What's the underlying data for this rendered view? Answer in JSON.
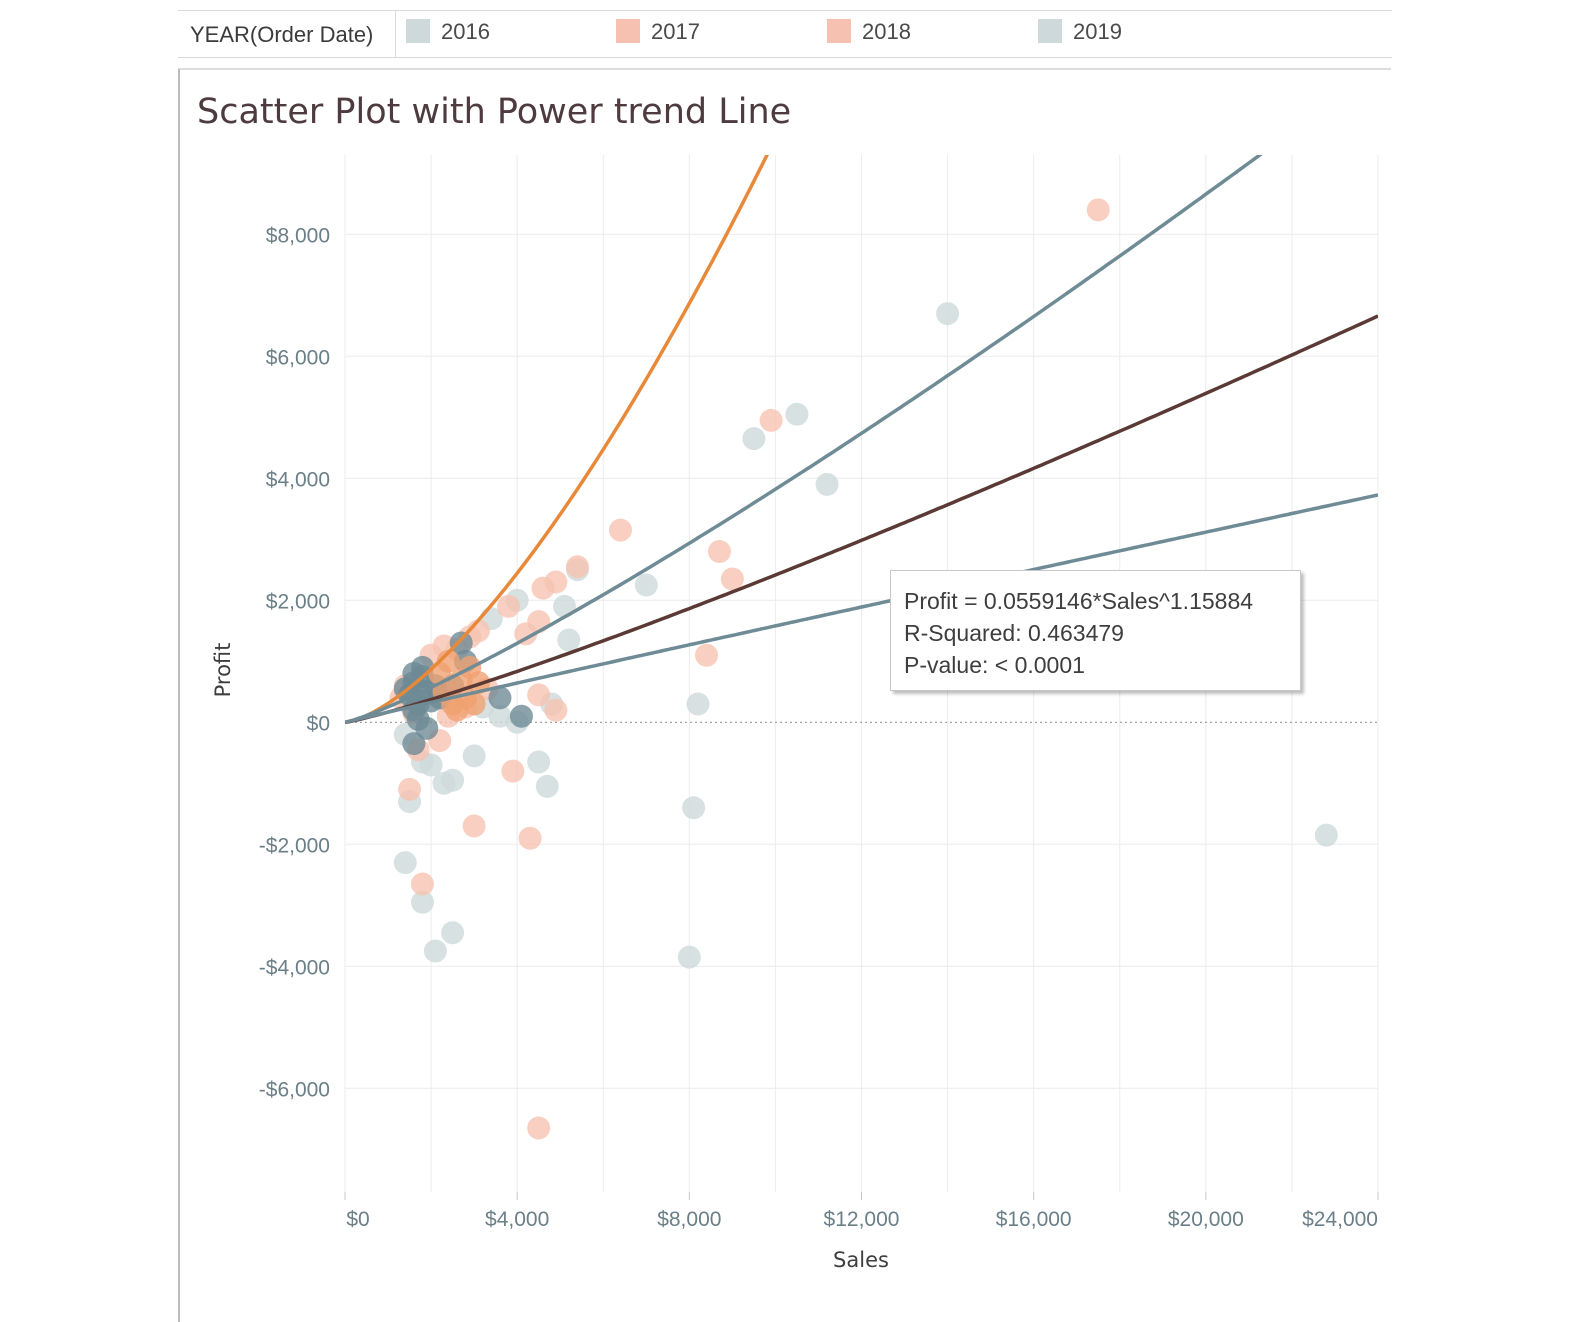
{
  "legend": {
    "title": "YEAR(Order Date)",
    "items": [
      {
        "label": "2016",
        "color": "#cdd9da"
      },
      {
        "label": "2017",
        "color": "#f6c1b0"
      },
      {
        "label": "2018",
        "color": "#f6c1b0"
      },
      {
        "label": "2019",
        "color": "#cdd9da"
      }
    ]
  },
  "tooltip": {
    "equation": "Profit = 0.0559146*Sales^1.15884",
    "r_squared": "R-Squared: 0.463479",
    "p_value": "P-value: < 0.0001"
  },
  "chart_data": {
    "type": "scatter",
    "title": "Scatter Plot with Power trend Line",
    "xlabel": "Sales",
    "ylabel": "Profit",
    "xlim": [
      0,
      24000
    ],
    "ylim": [
      -7700,
      9300
    ],
    "x_ticks": [
      0,
      4000,
      8000,
      12000,
      16000,
      20000,
      24000
    ],
    "x_tick_labels": [
      "$0",
      "$4,000",
      "$8,000",
      "$12,000",
      "$16,000",
      "$20,000",
      "$24,000"
    ],
    "y_ticks": [
      8000,
      6000,
      4000,
      2000,
      0,
      -2000,
      -4000,
      -6000
    ],
    "y_tick_labels": [
      "$8,000",
      "$6,000",
      "$4,000",
      "$2,000",
      "$0",
      "-$2,000",
      "-$4,000",
      "-$6,000"
    ],
    "grid": true,
    "zero_line": "dotted",
    "legend_position": "top",
    "series": [
      {
        "color": "#cdd9da",
        "points": [
          [
            14000,
            6700
          ],
          [
            10500,
            5050
          ],
          [
            9500,
            4650
          ],
          [
            11200,
            3900
          ],
          [
            7000,
            2250
          ],
          [
            5400,
            2500
          ],
          [
            4000,
            2000
          ],
          [
            5100,
            1900
          ],
          [
            3400,
            1700
          ],
          [
            5200,
            1350
          ],
          [
            8200,
            300
          ],
          [
            8100,
            -1400
          ],
          [
            8000,
            -3850
          ],
          [
            22800,
            -1850
          ],
          [
            4800,
            300
          ],
          [
            4500,
            -650
          ],
          [
            4700,
            -1050
          ],
          [
            3000,
            -550
          ],
          [
            2500,
            -950
          ],
          [
            2300,
            -1000
          ],
          [
            1500,
            -1300
          ],
          [
            1400,
            -2300
          ],
          [
            1800,
            -2950
          ],
          [
            2100,
            -3750
          ],
          [
            2500,
            -3450
          ],
          [
            4000,
            0
          ],
          [
            3600,
            100
          ],
          [
            3200,
            250
          ],
          [
            1500,
            300
          ],
          [
            1800,
            -650
          ],
          [
            2000,
            -700
          ],
          [
            1400,
            -200
          ]
        ]
      },
      {
        "color": "#f6c1b0",
        "points": [
          [
            17500,
            8400
          ],
          [
            9900,
            4950
          ],
          [
            6400,
            3150
          ],
          [
            8700,
            2800
          ],
          [
            9000,
            2350
          ],
          [
            5400,
            2550
          ],
          [
            4900,
            2300
          ],
          [
            4600,
            2200
          ],
          [
            3800,
            1900
          ],
          [
            4500,
            1650
          ],
          [
            4200,
            1450
          ],
          [
            8400,
            1100
          ],
          [
            4900,
            200
          ],
          [
            4500,
            450
          ],
          [
            3900,
            -800
          ],
          [
            3000,
            -1700
          ],
          [
            4300,
            -1900
          ],
          [
            1500,
            -1100
          ],
          [
            1800,
            -2650
          ],
          [
            4500,
            -6650
          ],
          [
            3100,
            1500
          ],
          [
            2900,
            1400
          ],
          [
            2600,
            1200
          ],
          [
            2300,
            1250
          ],
          [
            2000,
            1100
          ],
          [
            3300,
            550
          ],
          [
            2800,
            250
          ],
          [
            2400,
            100
          ],
          [
            2200,
            -300
          ],
          [
            1700,
            -450
          ],
          [
            1400,
            600
          ],
          [
            1300,
            400
          ],
          [
            1600,
            150
          ]
        ]
      },
      {
        "color": "#6b8995",
        "points": [
          [
            1600,
            650
          ],
          [
            1800,
            750
          ],
          [
            1900,
            500
          ],
          [
            1700,
            300
          ],
          [
            1600,
            200
          ],
          [
            1700,
            50
          ],
          [
            1900,
            -100
          ],
          [
            2000,
            350
          ],
          [
            1500,
            450
          ],
          [
            1400,
            550
          ],
          [
            2100,
            600
          ],
          [
            1800,
            900
          ],
          [
            1600,
            -350
          ],
          [
            2700,
            1300
          ],
          [
            2800,
            1000
          ],
          [
            2500,
            600
          ],
          [
            2200,
            400
          ],
          [
            4100,
            100
          ],
          [
            3600,
            400
          ],
          [
            1600,
            800
          ]
        ]
      },
      {
        "color": "#f0a070",
        "points": [
          [
            2500,
            300
          ],
          [
            2700,
            700
          ],
          [
            2900,
            900
          ],
          [
            2300,
            500
          ],
          [
            3100,
            650
          ],
          [
            2600,
            200
          ],
          [
            2800,
            400
          ],
          [
            2200,
            800
          ],
          [
            3000,
            300
          ],
          [
            2400,
            1000
          ]
        ]
      }
    ],
    "trend_lines": [
      {
        "style": "power",
        "color": "#e8893a",
        "coef": 0.0105,
        "exponent": 1.49
      },
      {
        "style": "power",
        "color": "#6e8b96",
        "coef": 0.0728,
        "exponent": 1.18
      },
      {
        "style": "power",
        "color": "#5b3a35",
        "coef": 0.0559146,
        "exponent": 1.15884
      },
      {
        "style": "power",
        "color": "#6e8b96",
        "coef": 0.19,
        "exponent": 0.98
      }
    ]
  }
}
